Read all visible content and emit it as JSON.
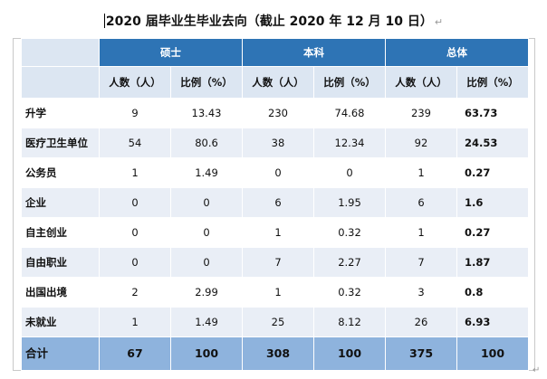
{
  "title": "2020 届毕业生毕业去向（截止 2020 年 12 月 10 日）",
  "para_mark": "↵",
  "groups": [
    "硕士",
    "本科",
    "总体"
  ],
  "subheaders": [
    "人数（人）",
    "比例（%）",
    "人数（人）",
    "比例（%）",
    "人数（人）",
    "比例（%）"
  ],
  "rows": [
    {
      "label": "升学",
      "values": [
        "9",
        "13.43",
        "230",
        "74.68",
        "239",
        "63.73"
      ]
    },
    {
      "label": "医疗卫生单位",
      "values": [
        "54",
        "80.6",
        "38",
        "12.34",
        "92",
        "24.53"
      ]
    },
    {
      "label": "公务员",
      "values": [
        "1",
        "1.49",
        "0",
        "0",
        "1",
        "0.27"
      ]
    },
    {
      "label": "企业",
      "values": [
        "0",
        "0",
        "6",
        "1.95",
        "6",
        "1.6"
      ]
    },
    {
      "label": "自主创业",
      "values": [
        "0",
        "0",
        "1",
        "0.32",
        "1",
        "0.27"
      ]
    },
    {
      "label": "自由职业",
      "values": [
        "0",
        "0",
        "7",
        "2.27",
        "7",
        "1.87"
      ]
    },
    {
      "label": "出国出境",
      "values": [
        "2",
        "2.99",
        "1",
        "0.32",
        "3",
        "0.8"
      ]
    },
    {
      "label": "未就业",
      "values": [
        "1",
        "1.49",
        "25",
        "8.12",
        "26",
        "6.93"
      ]
    }
  ],
  "total": {
    "label": "合计",
    "values": [
      "67",
      "100",
      "308",
      "100",
      "375",
      "100"
    ]
  },
  "colors": {
    "header_blue": "#2e74b5",
    "subheader": "#dce6f2",
    "stripe": "#e9eef6",
    "total": "#8eb3dd"
  }
}
